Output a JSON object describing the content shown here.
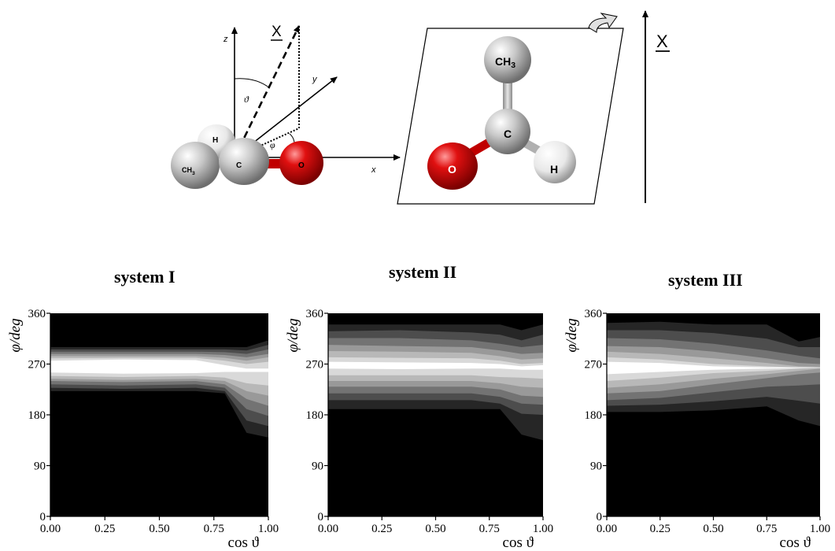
{
  "diagram": {
    "left": {
      "axis_z": "z",
      "axis_y": "y",
      "axis_x": "x",
      "vector": "X",
      "theta": "ϑ",
      "phi": "φ",
      "atoms": {
        "h": "H",
        "c": "C",
        "o": "O",
        "ch3": "CH3"
      }
    },
    "right": {
      "vector": "X",
      "atoms": {
        "ch3": "CH3",
        "c": "C",
        "o": "O",
        "h": "H"
      }
    }
  },
  "panels": [
    {
      "title": "system I",
      "y_label": "φ/deg",
      "x_label": "cos ϑ"
    },
    {
      "title": "system II",
      "y_label": "φ/deg",
      "x_label": "cos ϑ"
    },
    {
      "title": "system III",
      "y_label": "φ/deg",
      "x_label": "cos ϑ"
    }
  ],
  "chart_data": [
    {
      "type": "heatmap",
      "title": "system I",
      "xlabel": "cos ϑ",
      "ylabel": "φ/deg",
      "xlim": [
        0,
        1
      ],
      "ylim": [
        0,
        360
      ],
      "x_ticks": [
        "0.00",
        "0.25",
        "0.50",
        "0.75",
        "1.00"
      ],
      "y_ticks": [
        "0",
        "90",
        "180",
        "270",
        "360"
      ],
      "colormap": [
        "#000000",
        "#ffffff"
      ],
      "x": [
        0,
        0.333,
        0.667,
        0.8,
        0.9,
        1.0
      ],
      "bands": [
        {
          "level": 0.15,
          "upper": [
            300,
            300,
            300,
            300,
            300,
            312
          ],
          "lower": [
            222,
            222,
            222,
            218,
            148,
            140
          ]
        },
        {
          "level": 0.3,
          "upper": [
            296,
            296,
            296,
            296,
            294,
            304
          ],
          "lower": [
            228,
            226,
            228,
            222,
            170,
            160
          ]
        },
        {
          "level": 0.45,
          "upper": [
            292,
            292,
            292,
            291,
            288,
            296
          ],
          "lower": [
            234,
            232,
            234,
            228,
            190,
            178
          ]
        },
        {
          "level": 0.6,
          "upper": [
            288,
            288,
            288,
            286,
            282,
            288
          ],
          "lower": [
            240,
            238,
            240,
            234,
            208,
            196
          ]
        },
        {
          "level": 0.72,
          "upper": [
            284,
            284,
            284,
            281,
            276,
            282
          ],
          "lower": [
            244,
            242,
            244,
            240,
            222,
            214
          ]
        },
        {
          "level": 0.85,
          "upper": [
            280,
            281,
            281,
            276,
            270,
            274
          ],
          "lower": [
            249,
            247,
            249,
            246,
            236,
            232
          ]
        },
        {
          "level": 1.0,
          "upper": [
            276,
            278,
            277,
            268,
            262,
            262
          ],
          "lower": [
            255,
            253,
            254,
            256,
            256,
            256
          ]
        }
      ]
    },
    {
      "type": "heatmap",
      "title": "system II",
      "xlabel": "cos ϑ",
      "ylabel": "φ/deg",
      "xlim": [
        0,
        1
      ],
      "ylim": [
        0,
        360
      ],
      "x_ticks": [
        "0.00",
        "0.25",
        "0.50",
        "0.75",
        "1.00"
      ],
      "y_ticks": [
        "0",
        "90",
        "180",
        "270",
        "360"
      ],
      "colormap": [
        "#000000",
        "#ffffff"
      ],
      "x": [
        0,
        0.333,
        0.667,
        0.8,
        0.9,
        1.0
      ],
      "bands": [
        {
          "level": 0.15,
          "upper": [
            340,
            340,
            340,
            340,
            330,
            340
          ],
          "lower": [
            190,
            190,
            190,
            190,
            145,
            135
          ]
        },
        {
          "level": 0.3,
          "upper": [
            328,
            330,
            326,
            322,
            312,
            322
          ],
          "lower": [
            206,
            206,
            206,
            200,
            182,
            180
          ]
        },
        {
          "level": 0.45,
          "upper": [
            316,
            316,
            312,
            306,
            300,
            304
          ],
          "lower": [
            218,
            218,
            218,
            212,
            200,
            198
          ]
        },
        {
          "level": 0.6,
          "upper": [
            304,
            302,
            300,
            294,
            288,
            290
          ],
          "lower": [
            230,
            230,
            230,
            225,
            214,
            212
          ]
        },
        {
          "level": 0.72,
          "upper": [
            293,
            292,
            290,
            284,
            278,
            280
          ],
          "lower": [
            240,
            240,
            240,
            236,
            230,
            228
          ]
        },
        {
          "level": 0.85,
          "upper": [
            282,
            281,
            280,
            276,
            270,
            272
          ],
          "lower": [
            250,
            250,
            250,
            247,
            246,
            244
          ]
        },
        {
          "level": 1.0,
          "upper": [
            274,
            273,
            272,
            270,
            266,
            268
          ],
          "lower": [
            262,
            261,
            262,
            262,
            260,
            260
          ]
        }
      ]
    },
    {
      "type": "heatmap",
      "title": "system III",
      "xlabel": "cos ϑ",
      "ylabel": "φ/deg",
      "xlim": [
        0,
        1
      ],
      "ylim": [
        0,
        360
      ],
      "x_ticks": [
        "0.00",
        "0.25",
        "0.50",
        "0.75",
        "1.00"
      ],
      "y_ticks": [
        "0",
        "90",
        "180",
        "270",
        "360"
      ],
      "colormap": [
        "#000000",
        "#ffffff"
      ],
      "x": [
        0,
        0.25,
        0.5,
        0.75,
        0.9,
        1.0
      ],
      "bands": [
        {
          "level": 0.15,
          "upper": [
            343,
            345,
            340,
            340,
            310,
            318
          ],
          "lower": [
            185,
            185,
            188,
            195,
            170,
            160
          ]
        },
        {
          "level": 0.3,
          "upper": [
            330,
            330,
            325,
            315,
            300,
            300
          ],
          "lower": [
            196,
            198,
            204,
            212,
            205,
            200
          ]
        },
        {
          "level": 0.45,
          "upper": [
            316,
            314,
            306,
            294,
            285,
            280
          ],
          "lower": [
            206,
            210,
            220,
            230,
            232,
            234
          ]
        },
        {
          "level": 0.6,
          "upper": [
            302,
            300,
            292,
            280,
            272,
            270
          ],
          "lower": [
            218,
            222,
            234,
            245,
            252,
            255
          ]
        },
        {
          "level": 0.72,
          "upper": [
            292,
            288,
            280,
            272,
            266,
            265
          ],
          "lower": [
            228,
            234,
            244,
            252,
            258,
            262
          ]
        },
        {
          "level": 0.85,
          "upper": [
            282,
            278,
            270,
            266,
            264,
            264
          ],
          "lower": [
            240,
            246,
            254,
            258,
            262,
            263
          ]
        },
        {
          "level": 1.0,
          "upper": [
            274,
            272,
            266,
            264,
            264,
            264
          ],
          "lower": [
            252,
            256,
            260,
            262,
            263,
            264
          ]
        }
      ]
    }
  ]
}
